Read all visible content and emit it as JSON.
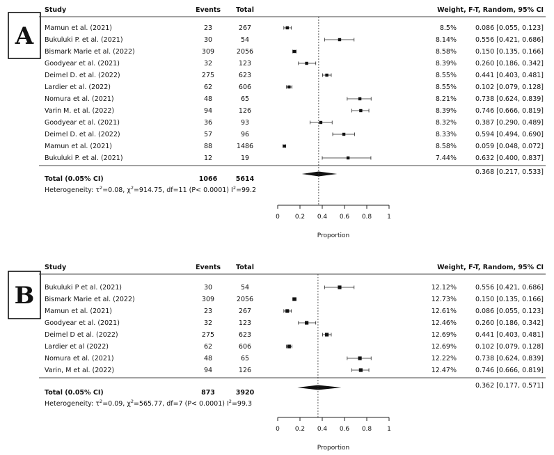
{
  "chart_data": [
    {
      "type": "forest",
      "panel_label": "A",
      "headers": {
        "study": "Study",
        "events": "Events",
        "total": "Total",
        "weight_ci": "Weight, F-T, Random, 95% CI"
      },
      "studies": [
        {
          "study": "Mamun et al. (2021)",
          "events": "23",
          "total": "267",
          "weight": "8.5%",
          "ci_text": "0.086 [0.055, 0.123]",
          "est": 0.086,
          "lo": 0.055,
          "hi": 0.123
        },
        {
          "study": "Bukuluki P. et al. (2021)",
          "events": "30",
          "total": "54",
          "weight": "8.14%",
          "ci_text": "0.556 [0.421, 0.686]",
          "est": 0.556,
          "lo": 0.421,
          "hi": 0.686
        },
        {
          "study": "Bismark Marie et al. (2022)",
          "events": "309",
          "total": "2056",
          "weight": "8.58%",
          "ci_text": "0.150 [0.135, 0.166]",
          "est": 0.15,
          "lo": 0.135,
          "hi": 0.166
        },
        {
          "study": "Goodyear et al. (2021)",
          "events": "32",
          "total": "123",
          "weight": "8.39%",
          "ci_text": "0.260 [0.186, 0.342]",
          "est": 0.26,
          "lo": 0.186,
          "hi": 0.342
        },
        {
          "study": "Deimel D. et al. (2022)",
          "events": "275",
          "total": "623",
          "weight": "8.55%",
          "ci_text": "0.441 [0.403, 0.481]",
          "est": 0.441,
          "lo": 0.403,
          "hi": 0.481
        },
        {
          "study": "Lardier et al. (2022)",
          "events": "62",
          "total": "606",
          "weight": "8.55%",
          "ci_text": "0.102 [0.079, 0.128]",
          "est": 0.102,
          "lo": 0.079,
          "hi": 0.128
        },
        {
          "study": "Nomura et al. (2021)",
          "events": "48",
          "total": "65",
          "weight": "8.21%",
          "ci_text": "0.738 [0.624, 0.839]",
          "est": 0.738,
          "lo": 0.624,
          "hi": 0.839
        },
        {
          "study": "Varin M. et al. (2022)",
          "events": "94",
          "total": "126",
          "weight": "8.39%",
          "ci_text": "0.746 [0.666, 0.819]",
          "est": 0.746,
          "lo": 0.666,
          "hi": 0.819
        },
        {
          "study": "Goodyear et al. (2021)",
          "events": "36",
          "total": "93",
          "weight": "8.32%",
          "ci_text": "0.387 [0.290, 0.489]",
          "est": 0.387,
          "lo": 0.29,
          "hi": 0.489
        },
        {
          "study": "Deimel D. et al. (2022)",
          "events": "57",
          "total": "96",
          "weight": "8.33%",
          "ci_text": "0.594 [0.494, 0.690]",
          "est": 0.594,
          "lo": 0.494,
          "hi": 0.69
        },
        {
          "study": "Mamun et al. (2021)",
          "events": "88",
          "total": "1486",
          "weight": "8.58%",
          "ci_text": "0.059 [0.048, 0.072]",
          "est": 0.059,
          "lo": 0.048,
          "hi": 0.072
        },
        {
          "study": "Bukuluki P. et al. (2021)",
          "events": "12",
          "total": "19",
          "weight": "7.44%",
          "ci_text": "0.632 [0.400, 0.837]",
          "est": 0.632,
          "lo": 0.4,
          "hi": 0.837
        }
      ],
      "total": {
        "label": "Total (0.05% CI)",
        "events": "1066",
        "total": "5614",
        "ci_text": "0.368 [0.217, 0.533]",
        "est": 0.368,
        "lo": 0.217,
        "hi": 0.533
      },
      "heterogeneity": "Heterogeneity: τ²=0.08, χ²=914.75, df=11 (P< 0.0001) I²=99.2",
      "x_ticks": [
        0,
        0.2,
        0.4,
        0.6,
        0.8,
        1
      ],
      "xlim": [
        0,
        1
      ],
      "xlabel": "Proportion"
    },
    {
      "type": "forest",
      "panel_label": "B",
      "headers": {
        "study": "Study",
        "events": "Events",
        "total": "Total",
        "weight_ci": "Weight, F-T, Random, 95% CI"
      },
      "studies": [
        {
          "study": "Bukuluki P et al. (2021)",
          "events": "30",
          "total": "54",
          "weight": "12.12%",
          "ci_text": "0.556 [0.421, 0.686]",
          "est": 0.556,
          "lo": 0.421,
          "hi": 0.686
        },
        {
          "study": "Bismark Marie et al. (2022)",
          "events": "309",
          "total": "2056",
          "weight": "12.73%",
          "ci_text": "0.150 [0.135, 0.166]",
          "est": 0.15,
          "lo": 0.135,
          "hi": 0.166
        },
        {
          "study": "Mamun et al. (2021)",
          "events": "23",
          "total": "267",
          "weight": "12.61%",
          "ci_text": "0.086 [0.055, 0.123]",
          "est": 0.086,
          "lo": 0.055,
          "hi": 0.123
        },
        {
          "study": "Goodyear et al. (2021)",
          "events": "32",
          "total": "123",
          "weight": "12.46%",
          "ci_text": "0.260 [0.186, 0.342]",
          "est": 0.26,
          "lo": 0.186,
          "hi": 0.342
        },
        {
          "study": "Deimel D et al. (2022)",
          "events": "275",
          "total": "623",
          "weight": "12.69%",
          "ci_text": "0.441 [0.403, 0.481]",
          "est": 0.441,
          "lo": 0.403,
          "hi": 0.481
        },
        {
          "study": "Lardier et al (2022)",
          "events": "62",
          "total": "606",
          "weight": "12.69%",
          "ci_text": "0.102 [0.079, 0.128]",
          "est": 0.102,
          "lo": 0.079,
          "hi": 0.128
        },
        {
          "study": "Nomura et al. (2021)",
          "events": "48",
          "total": "65",
          "weight": "12.22%",
          "ci_text": "0.738 [0.624, 0.839]",
          "est": 0.738,
          "lo": 0.624,
          "hi": 0.839
        },
        {
          "study": "Varin, M et al. (2022)",
          "events": "94",
          "total": "126",
          "weight": "12.47%",
          "ci_text": "0.746 [0.666, 0.819]",
          "est": 0.746,
          "lo": 0.666,
          "hi": 0.819
        }
      ],
      "total": {
        "label": "Total (0.05% CI)",
        "events": "873",
        "total": "3920",
        "ci_text": "0.362 [0.177, 0.571]",
        "est": 0.362,
        "lo": 0.177,
        "hi": 0.571
      },
      "heterogeneity": "Heterogeneity: τ²=0.09, χ²=565.77, df=7 (P< 0.0001) I²=99.3",
      "x_ticks": [
        0,
        0.2,
        0.4,
        0.6,
        0.8,
        1
      ],
      "xlim": [
        0,
        1
      ],
      "xlabel": "Proportion"
    }
  ]
}
